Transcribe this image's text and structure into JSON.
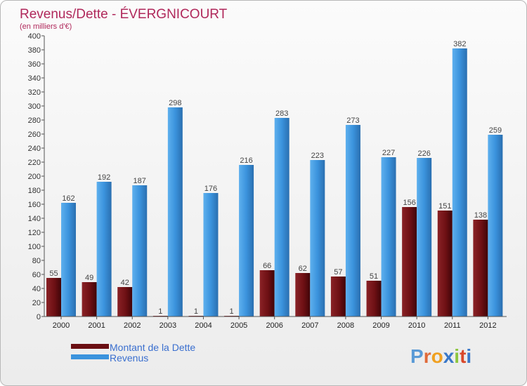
{
  "chart_data": {
    "type": "bar",
    "title": "Revenus/Dette - ÉVERGNICOURT",
    "subtitle": "(en milliers d'€)",
    "categories": [
      "2000",
      "2001",
      "2002",
      "2003",
      "2004",
      "2005",
      "2006",
      "2007",
      "2008",
      "2009",
      "2010",
      "2011",
      "2012"
    ],
    "series": [
      {
        "name": "Montant de la Dette",
        "color": "#7a1418",
        "values": [
          55,
          49,
          42,
          1,
          1,
          1,
          66,
          62,
          57,
          51,
          156,
          151,
          138
        ],
        "labels": [
          "55",
          "49",
          "42",
          "1",
          "1",
          "1",
          "66",
          "62",
          "57",
          "51",
          "156",
          "151",
          "138"
        ]
      },
      {
        "name": "Revenus",
        "color": "#3b93dd",
        "values": [
          162,
          192,
          187,
          298,
          176,
          216,
          283,
          223,
          273,
          227,
          226,
          382,
          259
        ],
        "labels": [
          "162",
          "192",
          "187",
          "298",
          "176",
          "216",
          "283",
          "223",
          "273",
          "227",
          "226",
          "382",
          "259"
        ]
      }
    ],
    "ylim": [
      0,
      400
    ],
    "yticks": [
      "0",
      "20",
      "40",
      "60",
      "80",
      "100",
      "120",
      "140",
      "160",
      "180",
      "200",
      "220",
      "240",
      "260",
      "280",
      "300",
      "320",
      "340",
      "360",
      "380",
      "400"
    ],
    "grid": false,
    "legend": "bottom-left"
  },
  "legend": {
    "debt_label": "Montant de la Dette",
    "revenue_label": "Revenus"
  },
  "logo": {
    "text": "Proxiti",
    "letters": [
      "P",
      "r",
      "o",
      "x",
      "i",
      "t",
      "i"
    ],
    "letter_colors": [
      "#5a9ad6",
      "#e06a3a",
      "#f0a020",
      "#3a78c8",
      "#8cc63f",
      "#d9482b",
      "#3a78c8"
    ]
  }
}
